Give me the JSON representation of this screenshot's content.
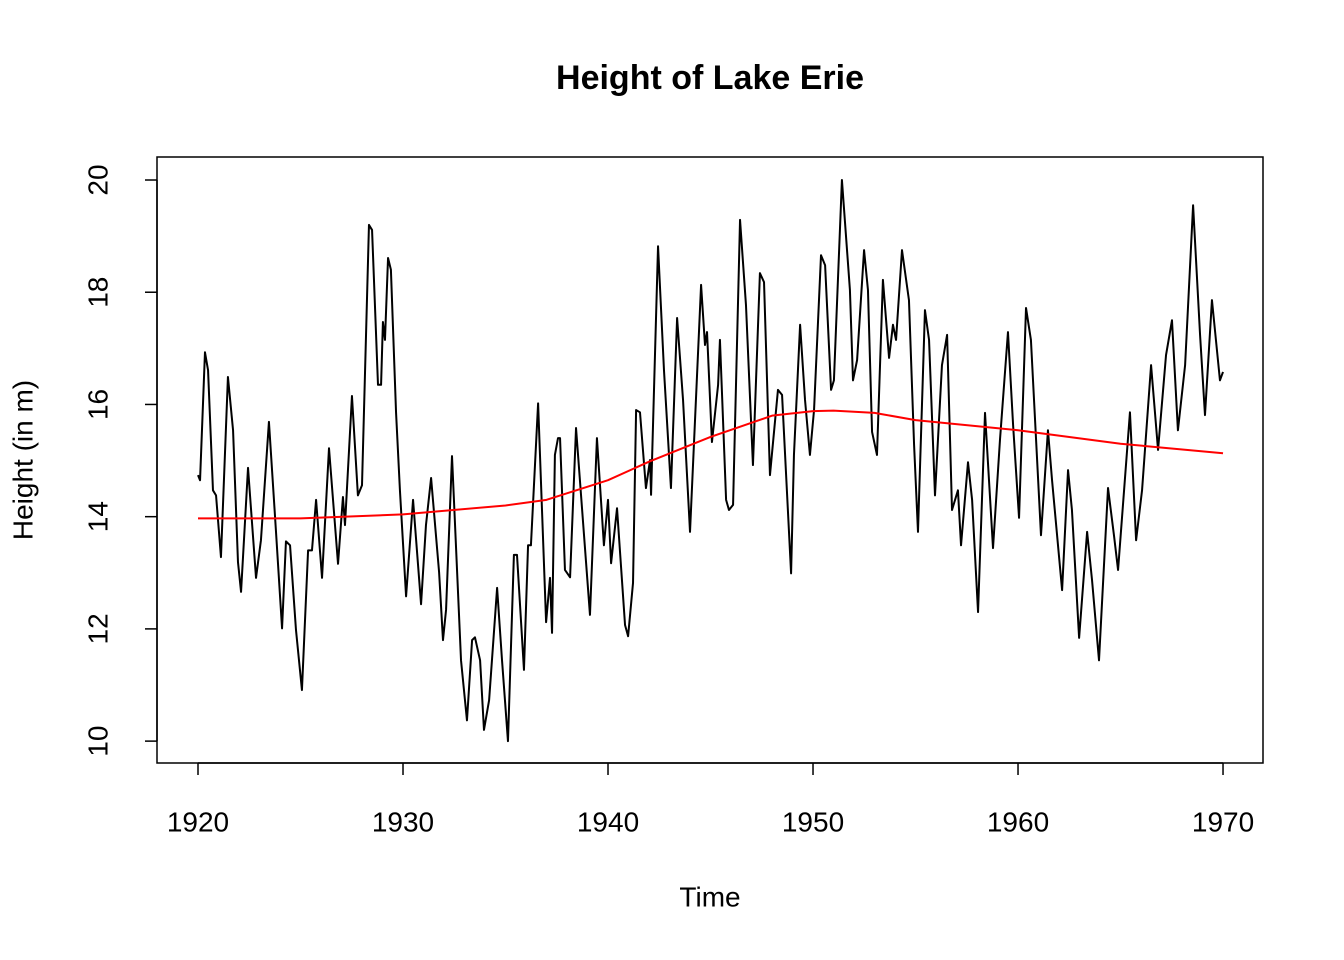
{
  "chart_data": {
    "type": "line",
    "title": "Height of Lake Erie",
    "x_label": "Time",
    "y_label": "Height (in m)",
    "xlim": [
      1918,
      1971.95
    ],
    "ylim": [
      9.61,
      20.41
    ],
    "xticks": [
      1920,
      1930,
      1940,
      1950,
      1960,
      1970
    ],
    "yticks": [
      10,
      12,
      14,
      16,
      18,
      20
    ],
    "series": [
      {
        "color": "#000000",
        "x": [
          1920.0,
          1920.1,
          1920.34,
          1920.49,
          1920.73,
          1920.88,
          1921.12,
          1921.46,
          1921.71,
          1921.95,
          1922.1,
          1922.44,
          1922.83,
          1923.07,
          1923.46,
          1923.8,
          1924.1,
          1924.29,
          1924.49,
          1924.78,
          1925.07,
          1925.37,
          1925.56,
          1925.76,
          1926.05,
          1926.39,
          1926.83,
          1927.07,
          1927.17,
          1927.51,
          1927.8,
          1928.0,
          1928.34,
          1928.49,
          1928.78,
          1928.93,
          1929.02,
          1929.12,
          1929.27,
          1929.41,
          1929.66,
          1929.85,
          1930.15,
          1930.49,
          1930.88,
          1931.12,
          1931.37,
          1931.76,
          1931.95,
          1932.1,
          1932.39,
          1932.83,
          1933.12,
          1933.37,
          1933.51,
          1933.76,
          1933.95,
          1934.2,
          1934.59,
          1934.83,
          1935.12,
          1935.41,
          1935.56,
          1935.9,
          1936.1,
          1936.24,
          1936.59,
          1936.98,
          1937.17,
          1937.27,
          1937.41,
          1937.56,
          1937.66,
          1937.9,
          1938.15,
          1938.44,
          1938.83,
          1939.12,
          1939.46,
          1939.8,
          1940.0,
          1940.15,
          1940.44,
          1940.83,
          1940.98,
          1941.22,
          1941.37,
          1941.56,
          1941.85,
          1942.05,
          1942.1,
          1942.44,
          1942.73,
          1943.07,
          1943.37,
          1943.66,
          1944.0,
          1944.54,
          1944.73,
          1944.83,
          1945.07,
          1945.37,
          1945.46,
          1945.76,
          1945.9,
          1946.1,
          1946.44,
          1946.73,
          1947.07,
          1947.41,
          1947.61,
          1947.9,
          1948.29,
          1948.49,
          1948.93,
          1949.07,
          1949.37,
          1949.61,
          1949.85,
          1950.05,
          1950.39,
          1950.59,
          1950.88,
          1951.02,
          1951.41,
          1951.8,
          1951.95,
          1952.15,
          1952.49,
          1952.68,
          1952.88,
          1953.12,
          1953.41,
          1953.71,
          1953.9,
          1954.05,
          1954.34,
          1954.68,
          1954.93,
          1955.12,
          1955.46,
          1955.66,
          1955.95,
          1956.29,
          1956.54,
          1956.78,
          1957.07,
          1957.22,
          1957.56,
          1957.76,
          1958.05,
          1958.39,
          1958.78,
          1959.12,
          1959.51,
          1959.76,
          1960.05,
          1960.39,
          1960.63,
          1961.12,
          1961.46,
          1961.66,
          1962.15,
          1962.44,
          1962.63,
          1962.98,
          1963.37,
          1963.61,
          1963.95,
          1964.39,
          1964.68,
          1964.88,
          1965.46,
          1965.76,
          1966.05,
          1966.49,
          1966.83,
          1967.22,
          1967.51,
          1967.8,
          1968.15,
          1968.54,
          1968.88,
          1969.12,
          1969.46,
          1969.85,
          1970.0
        ],
        "values": [
          14.74,
          14.65,
          16.93,
          16.61,
          14.47,
          14.38,
          13.28,
          16.49,
          15.54,
          13.19,
          12.66,
          14.87,
          12.91,
          13.58,
          15.69,
          13.76,
          12.01,
          13.56,
          13.49,
          11.98,
          10.91,
          13.4,
          13.4,
          14.3,
          12.91,
          15.22,
          13.16,
          14.35,
          13.85,
          16.15,
          14.38,
          14.56,
          19.2,
          19.11,
          16.35,
          16.35,
          17.47,
          17.15,
          18.61,
          18.4,
          15.86,
          14.47,
          12.58,
          14.3,
          12.44,
          13.85,
          14.69,
          13.01,
          11.8,
          12.34,
          15.08,
          11.44,
          10.37,
          11.8,
          11.85,
          11.44,
          10.2,
          10.73,
          12.73,
          11.44,
          10.0,
          13.32,
          13.32,
          11.27,
          13.49,
          13.49,
          16.02,
          12.12,
          12.91,
          11.93,
          15.1,
          15.4,
          15.4,
          13.05,
          12.92,
          15.58,
          13.67,
          12.25,
          15.4,
          13.49,
          14.3,
          13.17,
          14.15,
          12.07,
          11.87,
          12.82,
          15.9,
          15.86,
          14.51,
          15.01,
          14.39,
          18.82,
          16.61,
          14.51,
          17.54,
          16.08,
          13.73,
          18.13,
          17.06,
          17.29,
          15.33,
          16.35,
          17.15,
          14.3,
          14.12,
          14.21,
          19.29,
          17.77,
          14.92,
          18.34,
          18.18,
          14.74,
          16.26,
          16.17,
          12.99,
          15.1,
          17.42,
          16.08,
          15.1,
          15.9,
          18.66,
          18.48,
          16.26,
          16.43,
          20.0,
          18.04,
          16.43,
          16.79,
          18.75,
          18.04,
          15.51,
          15.1,
          18.22,
          16.83,
          17.42,
          17.15,
          18.75,
          17.86,
          15.28,
          13.73,
          17.68,
          17.15,
          14.38,
          16.7,
          17.24,
          14.12,
          14.47,
          13.49,
          14.97,
          14.3,
          12.3,
          15.85,
          13.44,
          15.37,
          17.29,
          15.63,
          13.98,
          17.72,
          17.15,
          13.67,
          15.54,
          14.65,
          12.69,
          14.83,
          14.12,
          11.84,
          13.73,
          12.87,
          11.44,
          14.51,
          13.67,
          13.05,
          15.86,
          13.58,
          14.47,
          16.7,
          15.19,
          16.88,
          17.5,
          15.54,
          16.7,
          19.55,
          17.24,
          15.81,
          17.86,
          16.43,
          16.58
        ]
      },
      {
        "color": "#ff0000",
        "x": [
          1920,
          1925,
          1930,
          1935,
          1937,
          1940,
          1942,
          1945,
          1948,
          1950,
          1951,
          1953,
          1955,
          1960,
          1965,
          1970
        ],
        "values": [
          13.97,
          13.97,
          14.04,
          14.2,
          14.3,
          14.65,
          14.98,
          15.42,
          15.8,
          15.88,
          15.89,
          15.85,
          15.72,
          15.54,
          15.3,
          15.13
        ]
      }
    ]
  }
}
